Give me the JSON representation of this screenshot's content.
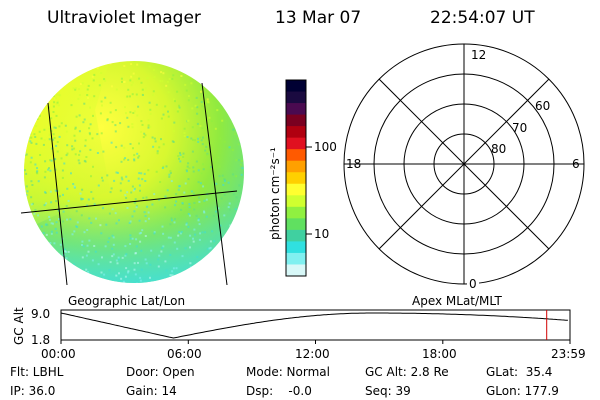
{
  "header": {
    "instrument": "Ultraviolet Imager",
    "date": "13 Mar 07",
    "time": "22:54:07 UT"
  },
  "colorbar": {
    "unit_label": "photon cm⁻²s⁻¹",
    "ticks": [
      "100",
      "10"
    ],
    "colors": [
      "#000033",
      "#1a0a40",
      "#4a0a50",
      "#7a0020",
      "#b00010",
      "#e01020",
      "#ff5a00",
      "#ffa000",
      "#ffd000",
      "#ffff30",
      "#d0ff30",
      "#90f040",
      "#60e060",
      "#40d0a0",
      "#30e0e0",
      "#80f0f0",
      "#d8f8f8"
    ]
  },
  "geo_panel": {
    "label": "Geographic Lat/Lon"
  },
  "polar_panel": {
    "label": "Apex MLat/MLT",
    "mlt_labels": {
      "top": "12",
      "left": "18",
      "right": "6",
      "bottom": "0"
    },
    "lat_labels": [
      "60",
      "70",
      "80"
    ]
  },
  "gc_alt_plot": {
    "ylabel": "GC Alt",
    "yticks": [
      "9.0",
      "1.8"
    ],
    "xticks": [
      "00:00",
      "06:00",
      "12:00",
      "18:00",
      "23:59"
    ],
    "current_marker_hour": 22.9
  },
  "status": {
    "flt": "Flt: LBHL",
    "ip": "IP: 36.0",
    "door": "Door: Open",
    "gain": "Gain: 14",
    "mode": "Mode: Normal",
    "dsp": "Dsp:    -0.0",
    "gc_alt": "GC Alt: 2.8 Re",
    "seq": "Seq: 39",
    "glat": "GLat:  35.4",
    "glon": "GLon: 177.9"
  }
}
